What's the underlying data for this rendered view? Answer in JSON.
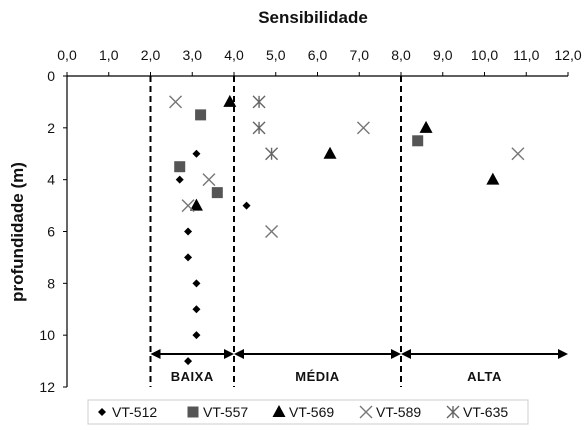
{
  "chart_data": {
    "type": "scatter",
    "title": "Sensibilidade",
    "xlabel": "Sensibilidade",
    "ylabel": "profundidade (m)",
    "xlim": [
      0,
      12
    ],
    "ylim": [
      0,
      12
    ],
    "y_inverted": true,
    "x_axis_position": "top",
    "grid": false,
    "xticks": [
      "0,0",
      "1,0",
      "2,0",
      "3,0",
      "4,0",
      "5,0",
      "6,0",
      "7,0",
      "8,0",
      "9,0",
      "10,0",
      "11,0",
      "12,0"
    ],
    "yticks": [
      "0",
      "2",
      "4",
      "6",
      "8",
      "10",
      "12"
    ],
    "thresholds": [
      2,
      4,
      8
    ],
    "bands": [
      {
        "label": "BAIXA",
        "from": 2,
        "to": 4
      },
      {
        "label": "MÉDIA",
        "from": 4,
        "to": 8
      },
      {
        "label": "ALTA",
        "from": 8,
        "to": 12
      }
    ],
    "legend_position": "bottom",
    "series": [
      {
        "name": "VT-512",
        "marker": "diamond",
        "color": "#000000",
        "points": [
          [
            3.1,
            3
          ],
          [
            2.7,
            4
          ],
          [
            4.3,
            5
          ],
          [
            2.9,
            6
          ],
          [
            2.9,
            7
          ],
          [
            3.1,
            8
          ],
          [
            3.1,
            9
          ],
          [
            3.1,
            10
          ],
          [
            2.9,
            11
          ]
        ]
      },
      {
        "name": "VT-557",
        "marker": "square",
        "color": "#555555",
        "points": [
          [
            3.2,
            1.5
          ],
          [
            2.7,
            3.5
          ],
          [
            3.6,
            4.5
          ],
          [
            8.4,
            2.5
          ]
        ]
      },
      {
        "name": "VT-569",
        "marker": "triangle",
        "color": "#000000",
        "points": [
          [
            3.9,
            1
          ],
          [
            3.1,
            5
          ],
          [
            6.3,
            3
          ],
          [
            8.6,
            2
          ],
          [
            10.2,
            4
          ]
        ]
      },
      {
        "name": "VT-589",
        "marker": "x",
        "color": "#777777",
        "points": [
          [
            2.6,
            1
          ],
          [
            7.1,
            2
          ],
          [
            3.4,
            4
          ],
          [
            2.9,
            5
          ],
          [
            4.9,
            6
          ],
          [
            10.8,
            3
          ]
        ]
      },
      {
        "name": "VT-635",
        "marker": "asterisk",
        "color": "#666666",
        "points": [
          [
            4.6,
            1
          ],
          [
            4.6,
            2
          ],
          [
            4.9,
            3
          ]
        ]
      }
    ]
  }
}
